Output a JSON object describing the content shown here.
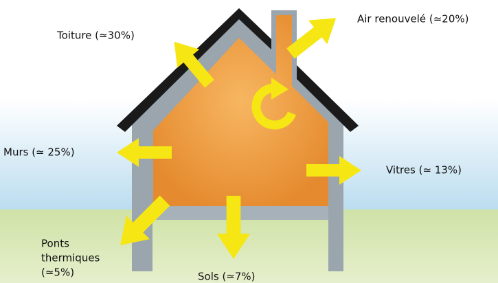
{
  "labels": {
    "air": "Air renouvelé (≃20%)",
    "roof": "Toiture (≃30%)",
    "walls": "Murs (≃ 25%)",
    "windows": "Vitres (≃ 13%)",
    "bridges": [
      "Ponts",
      "thermiques",
      "(≃5%)"
    ],
    "floor": "Sols (≃7%)"
  }
}
